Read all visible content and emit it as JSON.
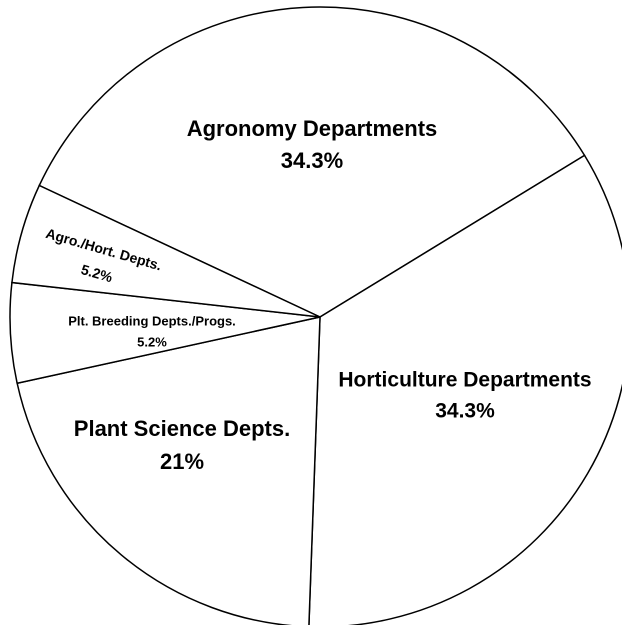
{
  "chart_data": {
    "type": "pie",
    "categories": [
      "Agronomy Departments",
      "Horticulture Departments",
      "Plant Science Depts.",
      "Plt. Breeding Depts./Progs.",
      "Agro./Hort. Depts."
    ],
    "values": [
      34.3,
      34.3,
      21,
      5.2,
      5.2
    ],
    "value_labels": [
      "34.3%",
      "34.3%",
      "21%",
      "5.2%",
      "5.2%"
    ],
    "color": "#ffffff"
  }
}
